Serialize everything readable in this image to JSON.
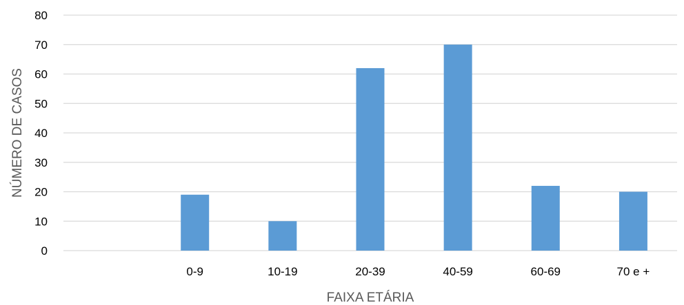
{
  "chart_data": {
    "type": "bar",
    "categories": [
      "",
      "0-9",
      "10-19",
      "20-39",
      "40-59",
      "60-69",
      "70 e +"
    ],
    "values": [
      null,
      19,
      10,
      62,
      70,
      22,
      20
    ],
    "xlabel": "FAIXA ETÁRIA",
    "ylabel": "NÚMERO DE CASOS",
    "ylim": [
      0,
      80
    ],
    "yticks": [
      0,
      10,
      20,
      30,
      40,
      50,
      60,
      70,
      80
    ],
    "grid": true,
    "legend": "none",
    "bar_color": "#5b9bd5"
  }
}
